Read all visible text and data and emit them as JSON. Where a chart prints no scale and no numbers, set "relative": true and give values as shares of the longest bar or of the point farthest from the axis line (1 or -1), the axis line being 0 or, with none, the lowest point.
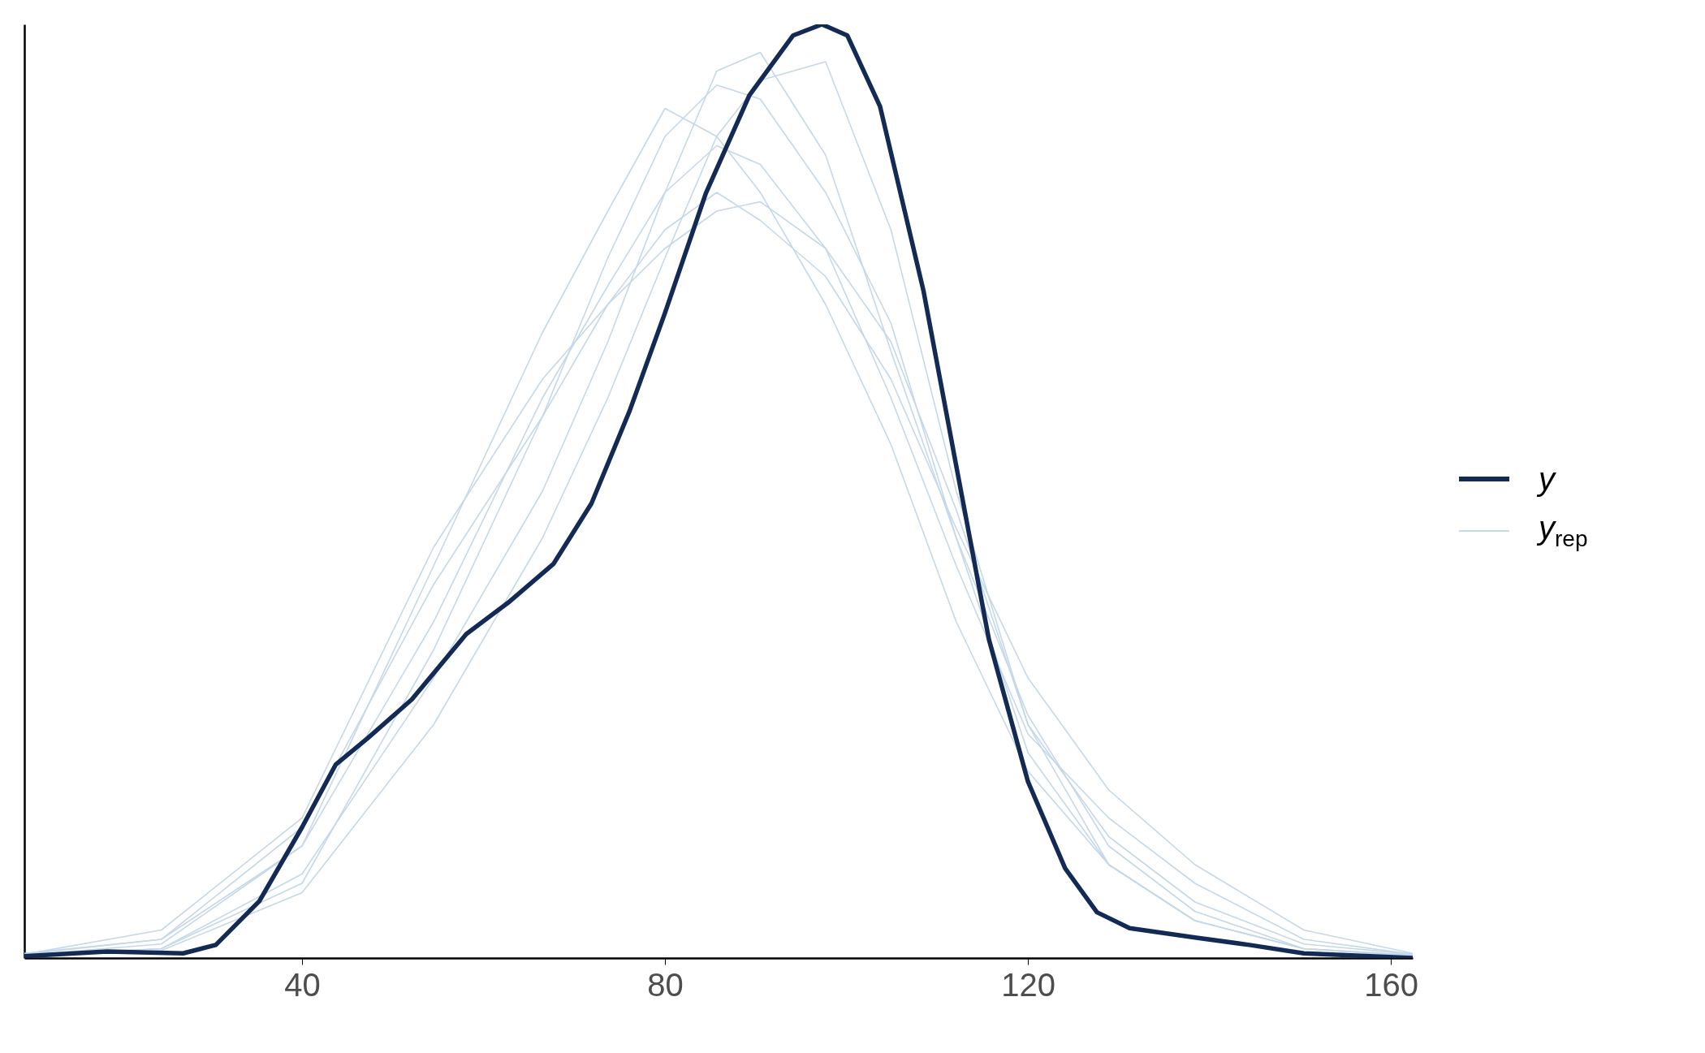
{
  "chart_data": {
    "type": "line",
    "relative": true,
    "legend": "right",
    "xlim": [
      9.4,
      162.4
    ],
    "xticks": [
      40,
      80,
      120,
      160
    ],
    "x": [
      9.4,
      24.5,
      40,
      54.5,
      66.5,
      73.7,
      80,
      85.7,
      90.5,
      97.7,
      104.9,
      112.1,
      120,
      128.9,
      138.4,
      150.4,
      162.4
    ],
    "series": [
      {
        "name": "y",
        "color": "#132b54",
        "x": [
          9.4,
          18.5,
          26.9,
          30.5,
          35.3,
          40,
          43.7,
          47.3,
          52.1,
          58.1,
          62.9,
          67.7,
          71.9,
          76.1,
          80,
          84.5,
          89.3,
          94.1,
          97.3,
          100.1,
          103.7,
          108.5,
          112.1,
          115.7,
          120,
          124.1,
          127.6,
          131.2,
          138.4,
          144.4,
          150.4,
          162.4
        ],
        "values": [
          0.002,
          0.007,
          0.005,
          0.014,
          0.061,
          0.14,
          0.207,
          0.236,
          0.277,
          0.347,
          0.382,
          0.422,
          0.487,
          0.586,
          0.691,
          0.819,
          0.924,
          0.988,
          1.0,
          0.988,
          0.912,
          0.714,
          0.527,
          0.341,
          0.189,
          0.096,
          0.049,
          0.032,
          0.022,
          0.014,
          0.005,
          0
        ]
      },
      {
        "name": "y$_{rep}$",
        "color": "#c5d8e8",
        "values": [
          0.003,
          0.01,
          0.09,
          0.3,
          0.5,
          0.66,
          0.82,
          0.95,
          0.97,
          0.86,
          0.65,
          0.45,
          0.26,
          0.12,
          0.05,
          0.01,
          0.003
        ]
      },
      {
        "color": "#c5d8e8",
        "values": [
          0.002,
          0.008,
          0.07,
          0.25,
          0.45,
          0.6,
          0.75,
          0.88,
          0.94,
          0.96,
          0.78,
          0.5,
          0.25,
          0.1,
          0.04,
          0.01,
          0.002
        ]
      },
      {
        "color": "#c5d8e8",
        "values": [
          0.003,
          0.015,
          0.12,
          0.42,
          0.67,
          0.8,
          0.91,
          0.88,
          0.82,
          0.7,
          0.55,
          0.36,
          0.2,
          0.1,
          0.04,
          0.01,
          0.003
        ]
      },
      {
        "color": "#c5d8e8",
        "values": [
          0.002,
          0.01,
          0.08,
          0.33,
          0.58,
          0.75,
          0.88,
          0.935,
          0.92,
          0.82,
          0.68,
          0.45,
          0.22,
          0.1,
          0.04,
          0.01,
          0.002
        ]
      },
      {
        "color": "#c5d8e8",
        "values": [
          0.004,
          0.02,
          0.12,
          0.36,
          0.6,
          0.72,
          0.82,
          0.87,
          0.85,
          0.76,
          0.6,
          0.42,
          0.24,
          0.15,
          0.08,
          0.02,
          0.004
        ]
      },
      {
        "color": "#c5d8e8",
        "values": [
          0.005,
          0.02,
          0.14,
          0.4,
          0.58,
          0.7,
          0.78,
          0.82,
          0.79,
          0.73,
          0.62,
          0.46,
          0.3,
          0.18,
          0.1,
          0.03,
          0.005
        ]
      },
      {
        "color": "#c5d8e8",
        "values": [
          0.004,
          0.03,
          0.15,
          0.44,
          0.62,
          0.7,
          0.76,
          0.8,
          0.81,
          0.76,
          0.66,
          0.48,
          0.25,
          0.13,
          0.06,
          0.015,
          0.004
        ]
      }
    ]
  }
}
